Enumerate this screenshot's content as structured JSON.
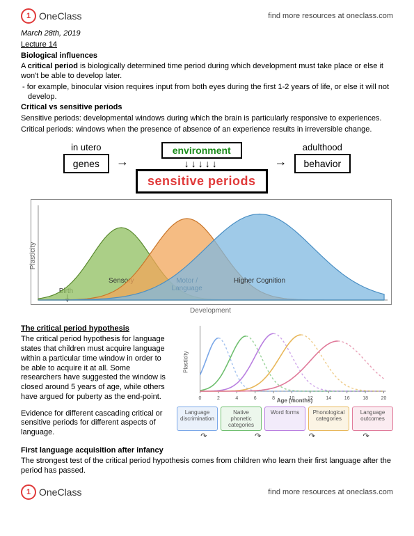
{
  "brand": {
    "name": "OneClass",
    "tagline": "find more resources at oneclass.com"
  },
  "meta": {
    "date": "March 28th, 2019",
    "lecture": "Lecture 14"
  },
  "s1": {
    "title": "Biological influences",
    "p1a": "A ",
    "p1b": "critical period",
    "p1c": " is biologically determined time period during which development must take place or else it won't be able to develop later.",
    "bullet": "- for example, binocular vision requires input from both eyes during the first 1-2 years of life, or else it will not develop."
  },
  "s2": {
    "title": "Critical vs sensitive periods",
    "p1": "Sensitive periods: developmental windows during which the brain is particularly responsive to experiences.",
    "p2": "Critical periods: windows when the presence of absence of an experience results in irreversible change."
  },
  "flow": {
    "in_utero": "in utero",
    "genes": "genes",
    "environment": "environment",
    "sensitive": "sensitive periods",
    "adulthood": "adulthood",
    "behavior": "behavior"
  },
  "chart1": {
    "ylabel": "Plasticity",
    "xlabel": "Development",
    "birth": "Birth",
    "curves": [
      {
        "label": "Sensory",
        "mu": 0.24,
        "sigma": 0.085,
        "h": 0.8,
        "fill": "#8fbf5f",
        "stroke": "#5a8a2f"
      },
      {
        "label": "Motor /\nLanguage",
        "mu": 0.43,
        "sigma": 0.1,
        "h": 0.9,
        "fill": "#f2a55a",
        "stroke": "#c9762a"
      },
      {
        "label": "Higher Cognition",
        "mu": 0.64,
        "sigma": 0.155,
        "h": 0.95,
        "fill": "#7fb8e0",
        "stroke": "#4a8fc4"
      }
    ]
  },
  "s3": {
    "title": "The critical period hypothesis",
    "p1": "The critical period hypothesis for language states that children must acquire language within a particular time window in order to be able to acquire it at all. Some researchers have suggested the window is closed around 5 years of age, while others have argued for puberty as the end-point.",
    "p2": "Evidence for different cascading critical or sensitive periods for different aspects of language."
  },
  "chart2": {
    "ylabel": "Plasticity",
    "xlabel": "Age (months)",
    "xmin": 0,
    "xmax": 20,
    "xtick": 2,
    "curves": [
      {
        "mu": 2,
        "sigma": 1.3,
        "h": 0.85,
        "color": "#7aa7e8"
      },
      {
        "mu": 5,
        "sigma": 1.7,
        "h": 0.88,
        "color": "#6fbf6f"
      },
      {
        "mu": 8,
        "sigma": 2.0,
        "h": 0.92,
        "color": "#b97fe0"
      },
      {
        "mu": 11,
        "sigma": 2.3,
        "h": 0.9,
        "color": "#e8b75a"
      },
      {
        "mu": 15,
        "sigma": 3.0,
        "h": 0.8,
        "color": "#e07a9a"
      }
    ],
    "stages": [
      {
        "label": "Language discrimination",
        "border": "#7aa7e8",
        "bg": "#eaf1fb"
      },
      {
        "label": "Native phonetic categories",
        "border": "#6fbf6f",
        "bg": "#ecf7ec"
      },
      {
        "label": "Word forms",
        "border": "#b97fe0",
        "bg": "#f2ebfa"
      },
      {
        "label": "Phonological categories",
        "border": "#e8b75a",
        "bg": "#fbf4e4"
      },
      {
        "label": "Language outcomes",
        "border": "#e07a9a",
        "bg": "#fbecf1"
      }
    ]
  },
  "s4": {
    "title": "First language acquisition after infancy",
    "p1": "The strongest test of the critical period hypothesis comes from children who learn their first language after the period has passed."
  }
}
